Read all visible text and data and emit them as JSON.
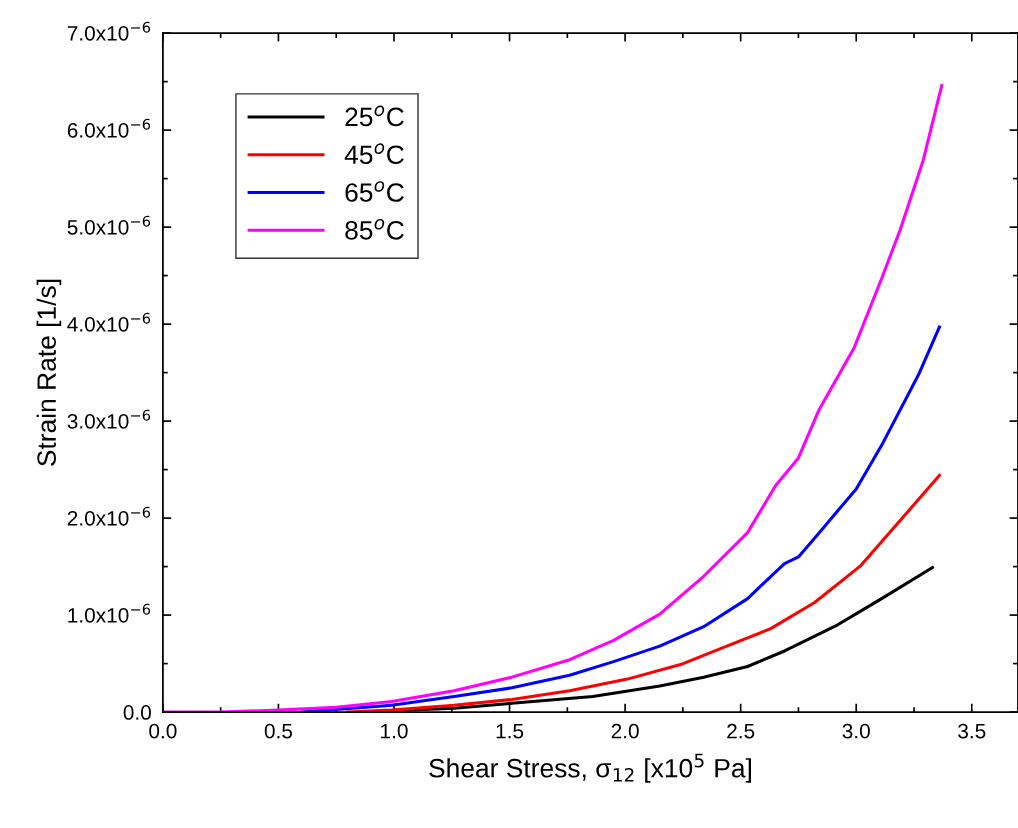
{
  "chart_data": {
    "type": "line",
    "xlabel": "Shear Stress, σ$_{12}$ [x10$^{5}$ Pa]",
    "ylabel": "Strain Rate [1/s]",
    "xlim": [
      0,
      3.7
    ],
    "xticks": [
      {
        "value": 0,
        "label": "0.0"
      },
      {
        "value": 0.5,
        "label": "0.5"
      },
      {
        "value": 1,
        "label": "1.0"
      },
      {
        "value": 1.5,
        "label": "1.5"
      },
      {
        "value": 2,
        "label": "2.0"
      },
      {
        "value": 2.5,
        "label": "2.5"
      },
      {
        "value": 3,
        "label": "3.0"
      },
      {
        "value": 3.5,
        "label": "3.5"
      }
    ],
    "ylim": [
      0,
      7e-06
    ],
    "yticks": [
      {
        "value": 0,
        "label": "0.0"
      },
      {
        "value": 1e-06,
        "label": "1.0x10$^{−6}$"
      },
      {
        "value": 2e-06,
        "label": "2.0x10$^{−6}$"
      },
      {
        "value": 3e-06,
        "label": "3.0x10$^{−6}$"
      },
      {
        "value": 4e-06,
        "label": "4.0x10$^{−6}$"
      },
      {
        "value": 5e-06,
        "label": "5.0x10$^{−6}$"
      },
      {
        "value": 6e-06,
        "label": "6.0x10$^{−6}$"
      },
      {
        "value": 7e-06,
        "label": "7.0x10$^{−6}$"
      }
    ],
    "grid": false,
    "legend": "top left",
    "marker": "none",
    "line_style": "solid",
    "series": [
      {
        "name": "25$^{o}$C",
        "color": "#000000",
        "x": [
          0.85,
          1.26,
          1.51,
          1.86,
          2.15,
          2.34,
          2.53,
          2.69,
          2.92,
          3.11,
          3.33
        ],
        "values": [
          0,
          4e-08,
          9e-08,
          1.6e-07,
          2.7e-07,
          3.6e-07,
          4.7e-07,
          6.3e-07,
          9e-07,
          1.17e-06,
          1.49e-06
        ]
      },
      {
        "name": "45$^{o}$C",
        "color": "#ff0000",
        "x": [
          0.8,
          0.99,
          1.26,
          1.51,
          1.76,
          2.01,
          2.24,
          2.44,
          2.63,
          2.82,
          3.02,
          3.21,
          3.36
        ],
        "values": [
          0,
          2e-08,
          7e-08,
          1.3e-07,
          2.2e-07,
          3.4e-07,
          4.9e-07,
          6.8e-07,
          8.6e-07,
          1.13e-06,
          1.51e-06,
          2.03e-06,
          2.44e-06
        ]
      },
      {
        "name": "65$^{o}$C",
        "color": "#0000ff",
        "x": [
          0.6,
          0.99,
          1.26,
          1.51,
          1.76,
          1.95,
          2.15,
          2.34,
          2.53,
          2.64,
          2.69,
          2.75,
          2.84,
          3.0,
          3.11,
          3.27,
          3.36
        ],
        "values": [
          0,
          7e-08,
          1.6e-07,
          2.5e-07,
          3.8e-07,
          5.2e-07,
          6.8e-07,
          8.8e-07,
          1.17e-06,
          1.42e-06,
          1.53e-06,
          1.6e-06,
          1.85e-06,
          2.3e-06,
          2.75e-06,
          3.48e-06,
          3.97e-06
        ]
      },
      {
        "name": "85$^{o}$C",
        "color": "#ff00ff",
        "x": [
          0,
          0.25,
          0.5,
          0.75,
          0.99,
          1.26,
          1.51,
          1.76,
          1.95,
          2.15,
          2.34,
          2.53,
          2.65,
          2.75,
          2.84,
          2.99,
          3.11,
          3.19,
          3.29,
          3.37
        ],
        "values": [
          0,
          0,
          2e-08,
          5e-08,
          1.1e-07,
          2.2e-07,
          3.6e-07,
          5.4e-07,
          7.4e-07,
          1.01e-06,
          1.4e-06,
          1.85e-06,
          2.33e-06,
          2.62e-06,
          3.12e-06,
          3.75e-06,
          4.47e-06,
          4.97e-06,
          5.69e-06,
          6.46e-06
        ]
      }
    ]
  }
}
